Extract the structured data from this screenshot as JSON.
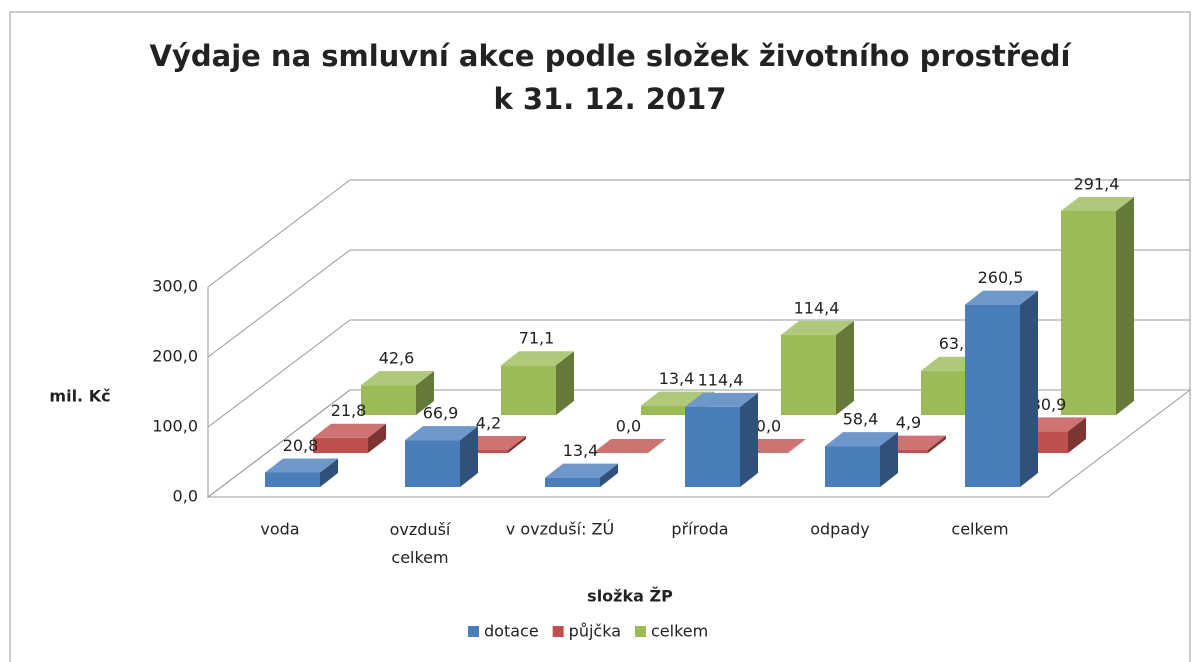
{
  "chart_data": {
    "type": "bar3d",
    "title": "Výdaje na smluvní akce podle složek životního prostředí",
    "subtitle": "k 31. 12. 2017",
    "x_label": "složka ŽP",
    "y_label": "mil. Kč",
    "categories": [
      "voda",
      "ovzduší celkem",
      "v ovzduší: ZÚ",
      "příroda",
      "odpady",
      "celkem"
    ],
    "series": [
      {
        "name": "dotace",
        "color": "#4a7ebb",
        "values": [
          20.8,
          66.9,
          13.4,
          114.4,
          58.4,
          260.5
        ],
        "value_labels": [
          "20,8",
          "66,9",
          "13,4",
          "114,4",
          "58,4",
          "260,5"
        ]
      },
      {
        "name": "půjčka",
        "color": "#c0504d",
        "values": [
          21.8,
          4.2,
          0.0,
          0.0,
          4.9,
          30.9
        ],
        "value_labels": [
          "21,8",
          "4,2",
          "0,0",
          "0,0",
          "4,9",
          "30,9"
        ]
      },
      {
        "name": "celkem",
        "color": "#9bbb59",
        "values": [
          42.6,
          71.1,
          13.4,
          114.4,
          63.3,
          291.4
        ],
        "value_labels": [
          "42,6",
          "71,1",
          "13,4",
          "114,4",
          "63,3",
          "291,4"
        ]
      }
    ],
    "ylim": [
      0,
      300
    ],
    "yticks": [
      {
        "value": 0,
        "label": "0,0"
      },
      {
        "value": 100,
        "label": "100,0"
      },
      {
        "value": 200,
        "label": "200,0"
      },
      {
        "value": 300,
        "label": "300,0"
      }
    ],
    "grid": true,
    "legend": "bottom"
  }
}
